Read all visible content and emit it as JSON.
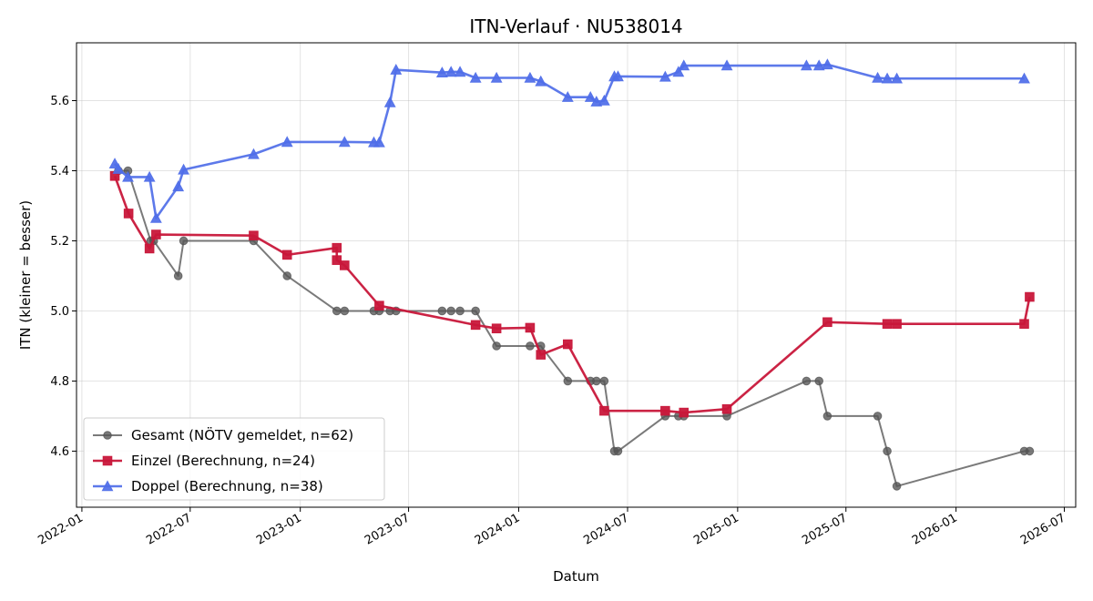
{
  "chart_data": {
    "type": "line",
    "title": "ITN-Verlauf · NU538014",
    "xlabel": "Datum",
    "ylabel": "ITN  (kleiner = besser)",
    "xlim": [
      "2021-12-23",
      "2026-07-20"
    ],
    "ylim": [
      4.44,
      5.765
    ],
    "x_ticks": [
      "2022-01",
      "2022-07",
      "2023-01",
      "2023-07",
      "2024-01",
      "2024-07",
      "2025-01",
      "2025-07",
      "2026-01",
      "2026-07"
    ],
    "y_ticks": [
      "4.6",
      "4.8",
      "5.0",
      "5.2",
      "5.4",
      "5.6"
    ],
    "grid": true,
    "legend_position": "lower-left",
    "series": [
      {
        "name": "Gesamt (NÖTV gemeldet, n=62)",
        "color": "#555555",
        "marker": "circle",
        "points": [
          [
            "2022-03-03",
            5.4
          ],
          [
            "2022-03-19",
            5.4
          ],
          [
            "2022-04-26",
            5.2
          ],
          [
            "2022-05-01",
            5.2
          ],
          [
            "2022-06-11",
            5.1
          ],
          [
            "2022-06-20",
            5.2
          ],
          [
            "2022-10-15",
            5.2
          ],
          [
            "2022-12-10",
            5.1
          ],
          [
            "2023-03-03",
            5.0
          ],
          [
            "2023-03-16",
            5.0
          ],
          [
            "2023-05-04",
            5.0
          ],
          [
            "2023-05-13",
            5.0
          ],
          [
            "2023-05-31",
            5.0
          ],
          [
            "2023-06-10",
            5.0
          ],
          [
            "2023-08-26",
            5.0
          ],
          [
            "2023-09-10",
            5.0
          ],
          [
            "2023-09-25",
            5.0
          ],
          [
            "2023-10-21",
            5.0
          ],
          [
            "2023-11-25",
            4.9
          ],
          [
            "2024-01-20",
            4.9
          ],
          [
            "2024-02-07",
            4.9
          ],
          [
            "2024-03-23",
            4.8
          ],
          [
            "2024-04-30",
            4.8
          ],
          [
            "2024-05-10",
            4.8
          ],
          [
            "2024-05-23",
            4.8
          ],
          [
            "2024-06-09",
            4.6
          ],
          [
            "2024-06-15",
            4.6
          ],
          [
            "2024-09-02",
            4.7
          ],
          [
            "2024-09-24",
            4.7
          ],
          [
            "2024-10-03",
            4.7
          ],
          [
            "2024-12-14",
            4.7
          ],
          [
            "2025-04-26",
            4.8
          ],
          [
            "2025-05-17",
            4.8
          ],
          [
            "2025-05-31",
            4.7
          ],
          [
            "2025-08-23",
            4.7
          ],
          [
            "2025-09-08",
            4.6
          ],
          [
            "2025-09-24",
            4.5
          ],
          [
            "2026-04-25",
            4.6
          ],
          [
            "2026-05-04",
            4.6
          ]
        ]
      },
      {
        "name": "Einzel (Berechnung, n=24)",
        "color": "#c8173a",
        "marker": "square",
        "points": [
          [
            "2022-02-25",
            5.385
          ],
          [
            "2022-03-20",
            5.278
          ],
          [
            "2022-04-24",
            5.178
          ],
          [
            "2022-05-05",
            5.218
          ],
          [
            "2022-10-15",
            5.215
          ],
          [
            "2022-12-10",
            5.16
          ],
          [
            "2023-03-03",
            5.18
          ],
          [
            "2023-03-03",
            5.145
          ],
          [
            "2023-03-16",
            5.13
          ],
          [
            "2023-05-13",
            5.015
          ],
          [
            "2023-10-21",
            4.96
          ],
          [
            "2023-11-25",
            4.95
          ],
          [
            "2024-01-20",
            4.952
          ],
          [
            "2024-02-07",
            4.875
          ],
          [
            "2024-03-23",
            4.905
          ],
          [
            "2024-05-23",
            4.715
          ],
          [
            "2024-09-02",
            4.715
          ],
          [
            "2024-10-03",
            4.71
          ],
          [
            "2024-12-14",
            4.72
          ],
          [
            "2025-05-31",
            4.968
          ],
          [
            "2025-09-08",
            4.963
          ],
          [
            "2025-09-24",
            4.963
          ],
          [
            "2026-04-25",
            4.963
          ],
          [
            "2026-05-04",
            5.04
          ]
        ]
      },
      {
        "name": "Doppel (Berechnung, n=38)",
        "color": "#4f6ee8",
        "marker": "triangle",
        "points": [
          [
            "2022-02-25",
            5.42
          ],
          [
            "2022-03-03",
            5.405
          ],
          [
            "2022-03-19",
            5.382
          ],
          [
            "2022-04-24",
            5.382
          ],
          [
            "2022-05-05",
            5.265
          ],
          [
            "2022-06-11",
            5.355
          ],
          [
            "2022-06-20",
            5.403
          ],
          [
            "2022-10-15",
            5.447
          ],
          [
            "2022-12-10",
            5.482
          ],
          [
            "2023-03-16",
            5.482
          ],
          [
            "2023-05-04",
            5.481
          ],
          [
            "2023-05-13",
            5.481
          ],
          [
            "2023-05-31",
            5.595
          ],
          [
            "2023-06-10",
            5.688
          ],
          [
            "2023-08-26",
            5.68
          ],
          [
            "2023-09-10",
            5.682
          ],
          [
            "2023-09-25",
            5.682
          ],
          [
            "2023-10-21",
            5.665
          ],
          [
            "2023-11-25",
            5.665
          ],
          [
            "2024-01-20",
            5.665
          ],
          [
            "2024-02-07",
            5.655
          ],
          [
            "2024-03-23",
            5.61
          ],
          [
            "2024-04-30",
            5.61
          ],
          [
            "2024-05-10",
            5.597
          ],
          [
            "2024-05-23",
            5.6
          ],
          [
            "2024-06-09",
            5.669
          ],
          [
            "2024-06-15",
            5.669
          ],
          [
            "2024-09-02",
            5.668
          ],
          [
            "2024-09-24",
            5.682
          ],
          [
            "2024-10-03",
            5.7
          ],
          [
            "2024-12-14",
            5.7
          ],
          [
            "2025-04-26",
            5.7
          ],
          [
            "2025-05-17",
            5.7
          ],
          [
            "2025-05-31",
            5.703
          ],
          [
            "2025-08-23",
            5.665
          ],
          [
            "2025-09-08",
            5.663
          ],
          [
            "2025-09-24",
            5.663
          ],
          [
            "2026-04-25",
            5.663
          ]
        ]
      }
    ]
  }
}
